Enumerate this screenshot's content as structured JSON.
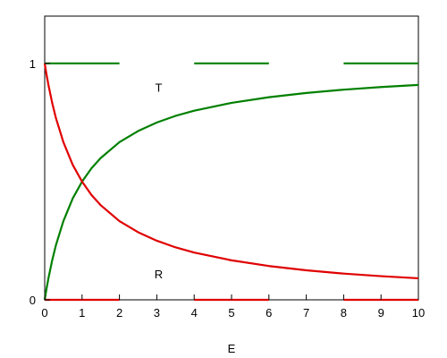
{
  "chart_data": {
    "type": "line",
    "xlabel": "E",
    "ylabel": "",
    "xlim": [
      0,
      10
    ],
    "ylim": [
      0,
      1.2
    ],
    "x_ticks": [
      "0",
      "1",
      "2",
      "3",
      "4",
      "5",
      "6",
      "7",
      "8",
      "9",
      "10"
    ],
    "y_ticks": [
      "0",
      "1"
    ],
    "grid": false,
    "series": [
      {
        "name": "T",
        "color": "#008000",
        "x": [
          0,
          0.05,
          0.1,
          0.2,
          0.3,
          0.5,
          0.75,
          1,
          1.25,
          1.5,
          2,
          2.5,
          3,
          3.5,
          4,
          5,
          6,
          7,
          8,
          9,
          10
        ],
        "y": [
          0,
          0.048,
          0.091,
          0.167,
          0.231,
          0.333,
          0.429,
          0.5,
          0.556,
          0.6,
          0.667,
          0.714,
          0.75,
          0.778,
          0.8,
          0.833,
          0.857,
          0.875,
          0.889,
          0.9,
          0.909
        ]
      },
      {
        "name": "R",
        "color": "#e00000",
        "x": [
          0,
          0.05,
          0.1,
          0.2,
          0.3,
          0.5,
          0.75,
          1,
          1.25,
          1.5,
          2,
          2.5,
          3,
          3.5,
          4,
          5,
          6,
          7,
          8,
          9,
          10
        ],
        "y": [
          1,
          0.952,
          0.909,
          0.833,
          0.769,
          0.667,
          0.571,
          0.5,
          0.444,
          0.4,
          0.333,
          0.286,
          0.25,
          0.222,
          0.2,
          0.167,
          0.143,
          0.125,
          0.111,
          0.1,
          0.091
        ]
      }
    ],
    "reference_segments": [
      {
        "color": "#008000",
        "y": 1,
        "x0": 0,
        "x1": 2
      },
      {
        "color": "#008000",
        "y": 1,
        "x0": 4,
        "x1": 6
      },
      {
        "color": "#008000",
        "y": 1,
        "x0": 8,
        "x1": 10
      },
      {
        "color": "#e00000",
        "y": 0,
        "x0": 0,
        "x1": 2
      },
      {
        "color": "#e00000",
        "y": 0,
        "x0": 4,
        "x1": 6
      },
      {
        "color": "#e00000",
        "y": 0,
        "x0": 8,
        "x1": 10
      }
    ],
    "annotations": [
      {
        "text": "T",
        "x": 3.05,
        "y": 0.88
      },
      {
        "text": "R",
        "x": 3.05,
        "y": 0.09
      }
    ]
  }
}
